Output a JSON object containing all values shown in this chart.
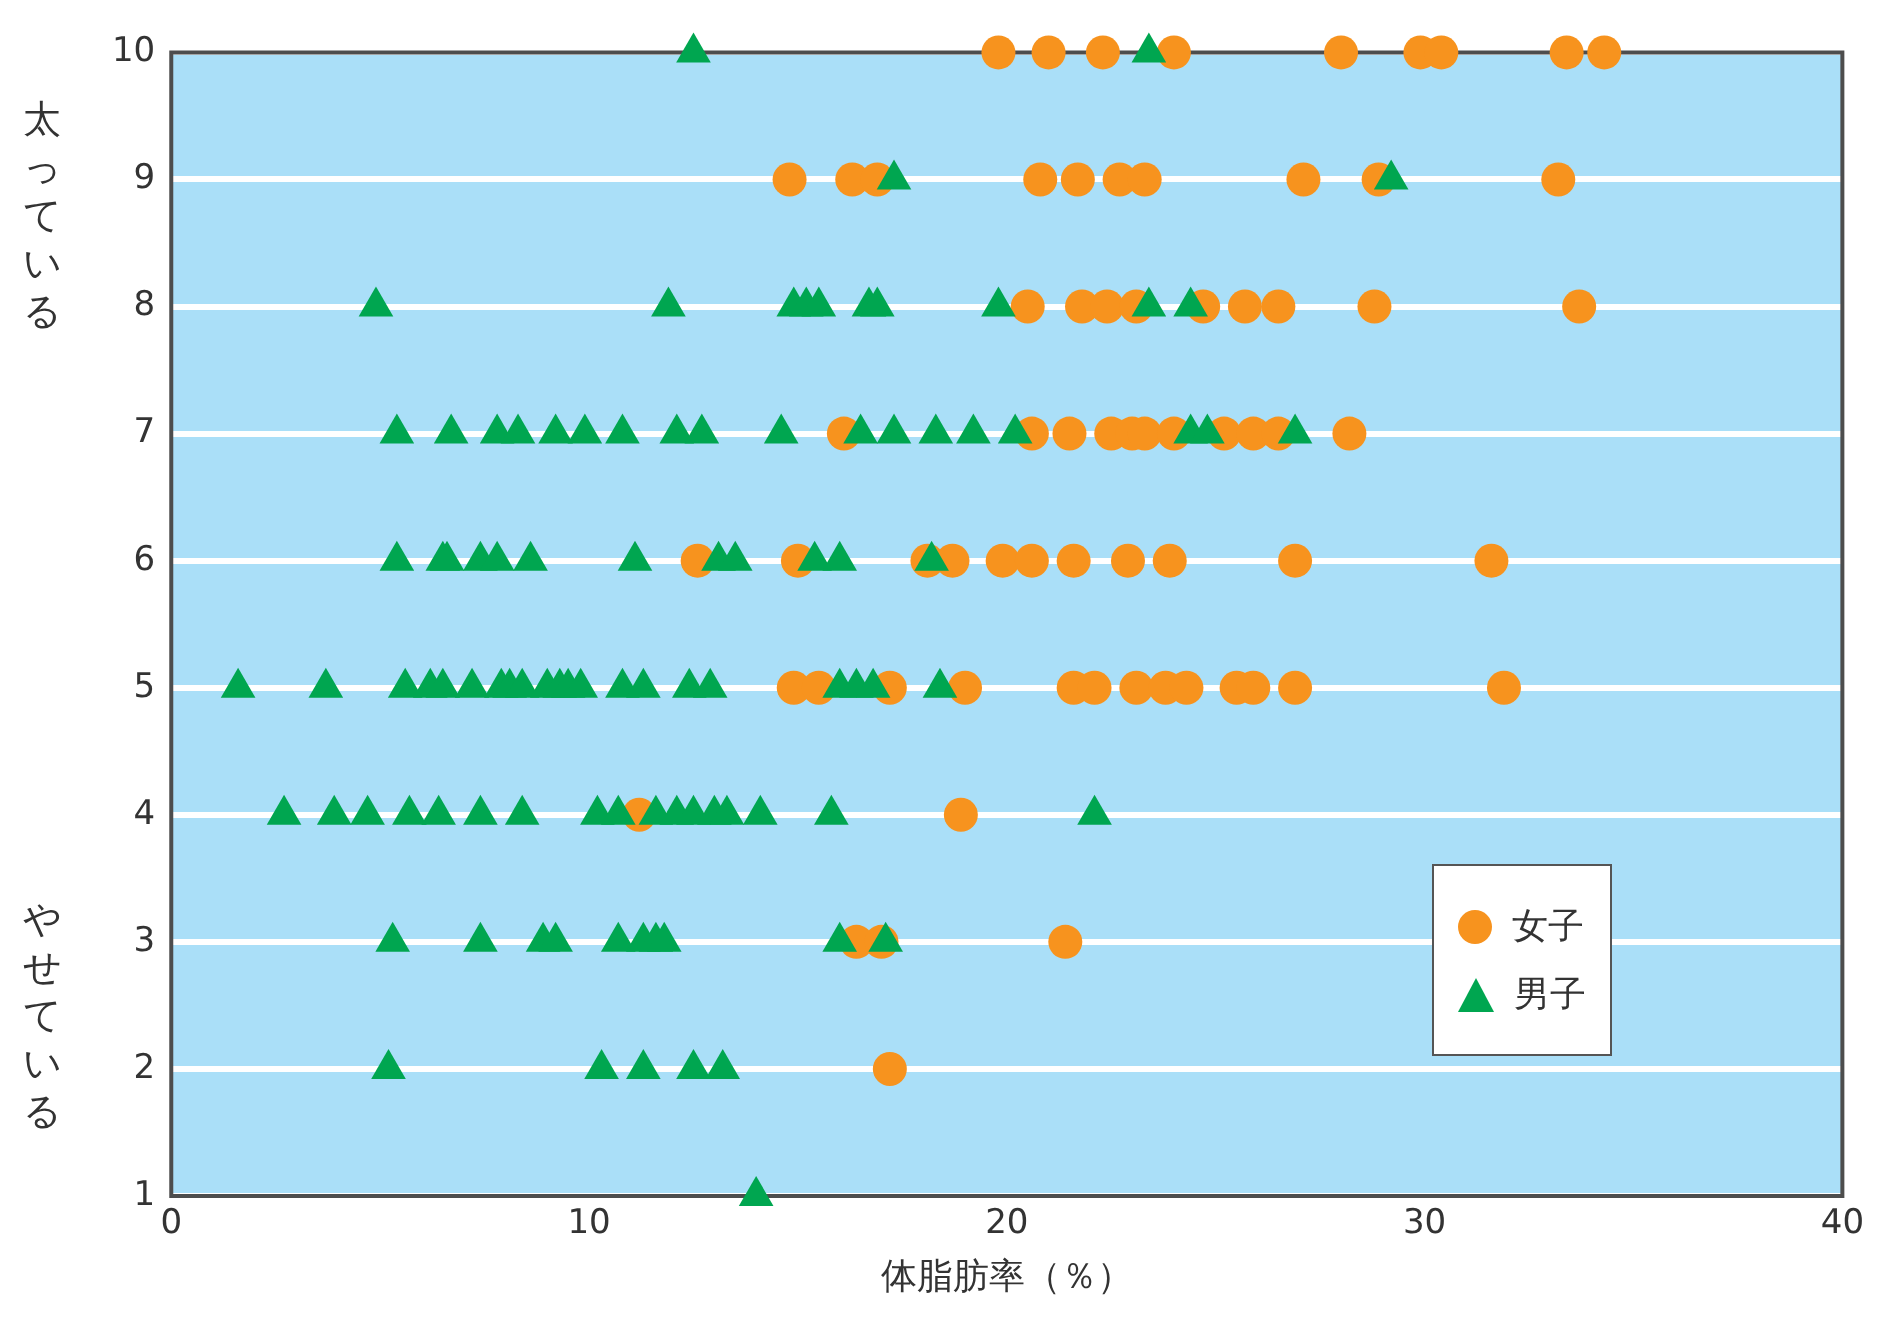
{
  "chart_data": {
    "type": "scatter",
    "xlabel": "体脂肪率（％）",
    "annotations": [
      "太っている",
      "やせている"
    ],
    "xlim": [
      0,
      40
    ],
    "xticks": [
      0,
      10,
      20,
      30,
      40
    ],
    "ylim": [
      1,
      10
    ],
    "yticks": [
      1,
      2,
      3,
      4,
      5,
      6,
      7,
      8,
      9,
      10
    ],
    "grid": "y",
    "legend": "bottom right",
    "series": [
      {
        "name": "女子",
        "color": "#f7931e",
        "marker": "circle",
        "x": [
          19.8,
          21.0,
          22.3,
          24.0,
          28.0,
          29.9,
          30.4,
          33.4,
          34.3,
          14.8,
          16.3,
          16.9,
          20.8,
          21.7,
          22.7,
          23.3,
          27.1,
          28.9,
          33.2,
          20.5,
          21.8,
          22.4,
          23.1,
          24.7,
          25.7,
          26.5,
          28.8,
          33.7,
          16.1,
          20.6,
          21.5,
          22.5,
          23.0,
          23.3,
          24.0,
          25.2,
          25.9,
          26.5,
          28.2,
          12.6,
          15.0,
          18.1,
          18.7,
          19.9,
          20.6,
          21.6,
          22.9,
          23.9,
          26.9,
          31.6,
          14.9,
          15.5,
          17.2,
          19.0,
          21.6,
          22.1,
          23.1,
          23.8,
          24.3,
          25.5,
          25.9,
          26.9,
          31.9,
          11.2,
          18.9,
          16.4,
          17.0,
          21.4,
          17.2
        ],
        "values": [
          10,
          10,
          10,
          10,
          10,
          10,
          10,
          10,
          10,
          9,
          9,
          9,
          9,
          9,
          9,
          9,
          9,
          9,
          9,
          8,
          8,
          8,
          8,
          8,
          8,
          8,
          8,
          8,
          7,
          7,
          7,
          7,
          7,
          7,
          7,
          7,
          7,
          7,
          7,
          6,
          6,
          6,
          6,
          6,
          6,
          6,
          6,
          6,
          6,
          6,
          5,
          5,
          5,
          5,
          5,
          5,
          5,
          5,
          5,
          5,
          5,
          5,
          5,
          4,
          4,
          3,
          3,
          3,
          2
        ]
      },
      {
        "name": "男子",
        "color": "#00a650",
        "marker": "triangle",
        "x": [
          12.5,
          23.4,
          17.3,
          29.2,
          4.9,
          11.9,
          14.9,
          15.2,
          15.5,
          16.7,
          16.9,
          19.8,
          23.4,
          24.4,
          5.4,
          6.7,
          7.8,
          8.3,
          9.2,
          9.9,
          10.8,
          12.1,
          12.7,
          14.6,
          16.5,
          17.3,
          18.3,
          19.2,
          20.2,
          24.4,
          24.8,
          26.9,
          5.4,
          6.5,
          6.6,
          7.4,
          7.8,
          8.6,
          11.1,
          13.1,
          13.5,
          15.4,
          16.0,
          18.2,
          1.6,
          3.7,
          5.6,
          6.2,
          6.5,
          7.2,
          7.9,
          8.1,
          8.4,
          9.0,
          9.3,
          9.5,
          9.8,
          10.8,
          11.3,
          12.4,
          12.9,
          16.0,
          16.4,
          16.8,
          18.4,
          2.7,
          3.9,
          4.7,
          5.7,
          6.4,
          7.4,
          8.4,
          10.2,
          10.7,
          11.6,
          12.1,
          12.5,
          13.0,
          13.3,
          14.1,
          15.8,
          22.1,
          5.3,
          7.4,
          8.9,
          9.2,
          10.7,
          11.3,
          11.6,
          11.8,
          16.0,
          17.1,
          5.2,
          10.3,
          11.3,
          12.5,
          13.2,
          14.0
        ],
        "values": [
          10,
          10,
          9,
          9,
          8,
          8,
          8,
          8,
          8,
          8,
          8,
          8,
          8,
          8,
          7,
          7,
          7,
          7,
          7,
          7,
          7,
          7,
          7,
          7,
          7,
          7,
          7,
          7,
          7,
          7,
          7,
          7,
          6,
          6,
          6,
          6,
          6,
          6,
          6,
          6,
          6,
          6,
          6,
          6,
          5,
          5,
          5,
          5,
          5,
          5,
          5,
          5,
          5,
          5,
          5,
          5,
          5,
          5,
          5,
          5,
          5,
          5,
          5,
          5,
          5,
          4,
          4,
          4,
          4,
          4,
          4,
          4,
          4,
          4,
          4,
          4,
          4,
          4,
          4,
          4,
          4,
          4,
          3,
          3,
          3,
          3,
          3,
          3,
          3,
          3,
          3,
          3,
          2,
          2,
          2,
          2,
          2,
          1
        ]
      }
    ]
  }
}
